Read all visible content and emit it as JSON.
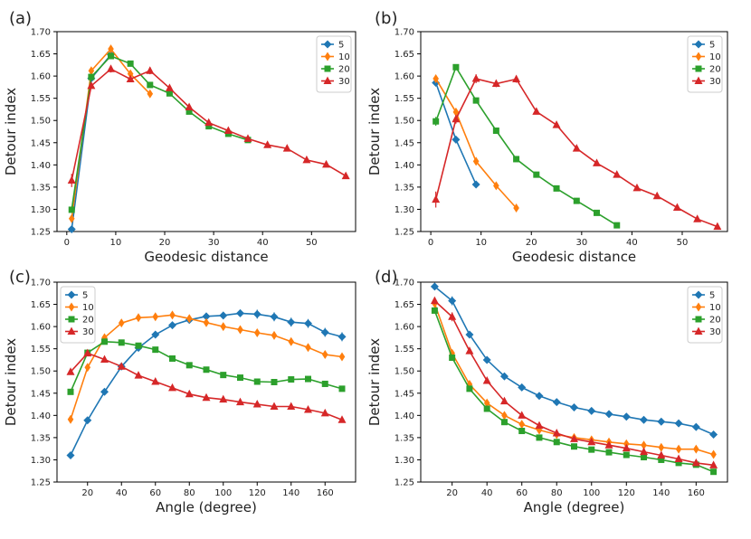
{
  "figure": {
    "panel_count": 4
  },
  "chart_data": [
    {
      "panel": "(a)",
      "type": "line",
      "xlabel": "Geodesic distance",
      "ylabel": "Detour index",
      "xlim": [
        -2,
        59
      ],
      "ylim": [
        1.25,
        1.7
      ],
      "xticks": [
        0,
        10,
        20,
        30,
        40,
        50
      ],
      "yticks": [
        1.25,
        1.3,
        1.35,
        1.4,
        1.45,
        1.5,
        1.55,
        1.6,
        1.65,
        1.7
      ],
      "legend_position": "top-right",
      "series": [
        {
          "name": "5",
          "color": "#1f77b4",
          "marker": "diamond",
          "x": [
            1,
            5,
            9
          ],
          "y": [
            1.255,
            1.595,
            1.648
          ],
          "err": [
            0.004,
            0.004,
            0.004
          ]
        },
        {
          "name": "10",
          "color": "#ff7f0e",
          "marker": "thin-diamond",
          "x": [
            1,
            5,
            9,
            13,
            17
          ],
          "y": [
            1.279,
            1.612,
            1.661,
            1.605,
            1.56
          ],
          "err": [
            0.005,
            0.004,
            0.004,
            0.004,
            0.003
          ]
        },
        {
          "name": "20",
          "color": "#2ca02c",
          "marker": "square",
          "x": [
            1,
            5,
            9,
            13,
            17,
            21,
            25,
            29,
            33,
            37
          ],
          "y": [
            1.299,
            1.598,
            1.645,
            1.628,
            1.58,
            1.561,
            1.52,
            1.487,
            1.47,
            1.456
          ],
          "err": [
            0.005,
            0.004,
            0.004,
            0.004,
            0.003,
            0.003,
            0.003,
            0.003,
            0.003,
            0.003
          ]
        },
        {
          "name": "30",
          "color": "#d62728",
          "marker": "triangle",
          "x": [
            1,
            5,
            9,
            13,
            17,
            21,
            25,
            29,
            33,
            37,
            41,
            45,
            49,
            53,
            57
          ],
          "y": [
            1.365,
            1.578,
            1.616,
            1.593,
            1.612,
            1.573,
            1.53,
            1.495,
            1.477,
            1.459,
            1.445,
            1.437,
            1.411,
            1.401,
            1.375
          ],
          "err": [
            0.015,
            0.004,
            0.008,
            0.006,
            0.008,
            0.004,
            0.003,
            0.003,
            0.003,
            0.003,
            0.003,
            0.003,
            0.003,
            0.003,
            0.003
          ]
        }
      ]
    },
    {
      "panel": "(b)",
      "type": "line",
      "xlabel": "Geodesic distance",
      "ylabel": "Detour index",
      "xlim": [
        -2,
        59
      ],
      "ylim": [
        1.25,
        1.7
      ],
      "xticks": [
        0,
        10,
        20,
        30,
        40,
        50
      ],
      "yticks": [
        1.25,
        1.3,
        1.35,
        1.4,
        1.45,
        1.5,
        1.55,
        1.6,
        1.65,
        1.7
      ],
      "legend_position": "top-right",
      "series": [
        {
          "name": "5",
          "color": "#1f77b4",
          "marker": "diamond",
          "x": [
            1,
            5,
            9
          ],
          "y": [
            1.585,
            1.457,
            1.356
          ],
          "err": [
            0.004,
            0.004,
            0.003
          ]
        },
        {
          "name": "10",
          "color": "#ff7f0e",
          "marker": "thin-diamond",
          "x": [
            1,
            5,
            9,
            13,
            17
          ],
          "y": [
            1.594,
            1.519,
            1.408,
            1.353,
            1.303
          ],
          "err": [
            0.004,
            0.004,
            0.003,
            0.003,
            0.003
          ]
        },
        {
          "name": "20",
          "color": "#2ca02c",
          "marker": "square",
          "x": [
            1,
            5,
            9,
            13,
            17,
            21,
            25,
            29,
            33,
            37
          ],
          "y": [
            1.498,
            1.62,
            1.545,
            1.477,
            1.413,
            1.378,
            1.347,
            1.319,
            1.292,
            1.264
          ],
          "err": [
            0.01,
            0.006,
            0.004,
            0.003,
            0.003,
            0.003,
            0.003,
            0.003,
            0.003,
            0.003
          ]
        },
        {
          "name": "30",
          "color": "#d62728",
          "marker": "triangle",
          "x": [
            1,
            5,
            9,
            13,
            17,
            21,
            25,
            29,
            33,
            37,
            41,
            45,
            49,
            53,
            57
          ],
          "y": [
            1.322,
            1.503,
            1.594,
            1.583,
            1.593,
            1.52,
            1.49,
            1.437,
            1.404,
            1.378,
            1.348,
            1.33,
            1.304,
            1.278,
            1.261
          ],
          "err": [
            0.018,
            0.01,
            0.01,
            0.008,
            0.008,
            0.005,
            0.004,
            0.003,
            0.003,
            0.003,
            0.003,
            0.003,
            0.003,
            0.003,
            0.003
          ]
        }
      ]
    },
    {
      "panel": "(c)",
      "type": "line",
      "xlabel": "Angle (degree)",
      "ylabel": "Detour index",
      "xlim": [
        2,
        178
      ],
      "ylim": [
        1.25,
        1.7
      ],
      "xticks": [
        20,
        40,
        60,
        80,
        100,
        120,
        140,
        160
      ],
      "yticks": [
        1.25,
        1.3,
        1.35,
        1.4,
        1.45,
        1.5,
        1.55,
        1.6,
        1.65,
        1.7
      ],
      "legend_position": "top-left",
      "series": [
        {
          "name": "5",
          "color": "#1f77b4",
          "marker": "diamond",
          "x": [
            10,
            20,
            30,
            40,
            50,
            60,
            70,
            80,
            90,
            100,
            110,
            120,
            130,
            140,
            150,
            160,
            170
          ],
          "y": [
            1.31,
            1.389,
            1.453,
            1.51,
            1.552,
            1.582,
            1.603,
            1.615,
            1.623,
            1.625,
            1.63,
            1.628,
            1.622,
            1.61,
            1.607,
            1.587,
            1.577
          ],
          "err": [
            0.006,
            0.006,
            0.006,
            0.006,
            0.006,
            0.006,
            0.006,
            0.006,
            0.008,
            0.008,
            0.008,
            0.01,
            0.01,
            0.01,
            0.01,
            0.01,
            0.01
          ]
        },
        {
          "name": "10",
          "color": "#ff7f0e",
          "marker": "thin-diamond",
          "x": [
            10,
            20,
            30,
            40,
            50,
            60,
            70,
            80,
            90,
            100,
            110,
            120,
            130,
            140,
            150,
            160,
            170
          ],
          "y": [
            1.391,
            1.508,
            1.575,
            1.608,
            1.62,
            1.622,
            1.626,
            1.618,
            1.609,
            1.6,
            1.593,
            1.586,
            1.58,
            1.566,
            1.553,
            1.537,
            1.532
          ],
          "err": [
            0.004,
            0.004,
            0.004,
            0.004,
            0.004,
            0.004,
            0.004,
            0.004,
            0.004,
            0.004,
            0.004,
            0.004,
            0.004,
            0.004,
            0.004,
            0.004,
            0.004
          ]
        },
        {
          "name": "20",
          "color": "#2ca02c",
          "marker": "square",
          "x": [
            10,
            20,
            30,
            40,
            50,
            60,
            70,
            80,
            90,
            100,
            110,
            120,
            130,
            140,
            150,
            160,
            170
          ],
          "y": [
            1.453,
            1.541,
            1.566,
            1.564,
            1.557,
            1.548,
            1.528,
            1.513,
            1.503,
            1.491,
            1.485,
            1.476,
            1.475,
            1.481,
            1.482,
            1.471,
            1.46
          ],
          "err": [
            0.004,
            0.004,
            0.004,
            0.004,
            0.004,
            0.004,
            0.004,
            0.004,
            0.004,
            0.004,
            0.004,
            0.004,
            0.004,
            0.006,
            0.006,
            0.006,
            0.006
          ]
        },
        {
          "name": "30",
          "color": "#d62728",
          "marker": "triangle",
          "x": [
            10,
            20,
            30,
            40,
            50,
            60,
            70,
            80,
            90,
            100,
            110,
            120,
            130,
            140,
            150,
            160,
            170
          ],
          "y": [
            1.498,
            1.54,
            1.526,
            1.51,
            1.49,
            1.476,
            1.462,
            1.448,
            1.44,
            1.436,
            1.43,
            1.425,
            1.42,
            1.42,
            1.413,
            1.405,
            1.39
          ],
          "err": [
            0.004,
            0.004,
            0.004,
            0.004,
            0.004,
            0.004,
            0.004,
            0.004,
            0.004,
            0.004,
            0.004,
            0.004,
            0.004,
            0.004,
            0.004,
            0.004,
            0.004
          ]
        }
      ]
    },
    {
      "panel": "(d)",
      "type": "line",
      "xlabel": "Angle (degree)",
      "ylabel": "Detour index",
      "xlim": [
        2,
        178
      ],
      "ylim": [
        1.25,
        1.7
      ],
      "xticks": [
        20,
        40,
        60,
        80,
        100,
        120,
        140,
        160
      ],
      "yticks": [
        1.25,
        1.3,
        1.35,
        1.4,
        1.45,
        1.5,
        1.55,
        1.6,
        1.65,
        1.7
      ],
      "legend_position": "top-right",
      "series": [
        {
          "name": "5",
          "color": "#1f77b4",
          "marker": "diamond",
          "x": [
            10,
            20,
            30,
            40,
            50,
            60,
            70,
            80,
            90,
            100,
            110,
            120,
            130,
            140,
            150,
            160,
            170
          ],
          "y": [
            1.69,
            1.658,
            1.582,
            1.525,
            1.488,
            1.463,
            1.444,
            1.43,
            1.418,
            1.41,
            1.403,
            1.397,
            1.39,
            1.386,
            1.382,
            1.374,
            1.357
          ],
          "err": [
            0.005,
            0.01,
            0.006,
            0.004,
            0.004,
            0.004,
            0.004,
            0.004,
            0.004,
            0.004,
            0.004,
            0.004,
            0.004,
            0.004,
            0.004,
            0.004,
            0.004
          ]
        },
        {
          "name": "10",
          "color": "#ff7f0e",
          "marker": "thin-diamond",
          "x": [
            10,
            20,
            30,
            40,
            50,
            60,
            70,
            80,
            90,
            100,
            110,
            120,
            130,
            140,
            150,
            160,
            170
          ],
          "y": [
            1.652,
            1.54,
            1.47,
            1.428,
            1.4,
            1.38,
            1.367,
            1.357,
            1.35,
            1.345,
            1.34,
            1.336,
            1.333,
            1.328,
            1.324,
            1.324,
            1.312
          ],
          "err": [
            0.006,
            0.005,
            0.004,
            0.004,
            0.004,
            0.004,
            0.004,
            0.004,
            0.004,
            0.004,
            0.004,
            0.004,
            0.004,
            0.004,
            0.004,
            0.004,
            0.004
          ]
        },
        {
          "name": "20",
          "color": "#2ca02c",
          "marker": "square",
          "x": [
            10,
            20,
            30,
            40,
            50,
            60,
            70,
            80,
            90,
            100,
            110,
            120,
            130,
            140,
            150,
            160,
            170
          ],
          "y": [
            1.636,
            1.53,
            1.46,
            1.415,
            1.385,
            1.365,
            1.35,
            1.34,
            1.33,
            1.323,
            1.317,
            1.311,
            1.306,
            1.3,
            1.293,
            1.289,
            1.273
          ],
          "err": [
            0.006,
            0.005,
            0.004,
            0.004,
            0.004,
            0.004,
            0.004,
            0.004,
            0.004,
            0.004,
            0.004,
            0.004,
            0.004,
            0.004,
            0.004,
            0.004,
            0.004
          ]
        },
        {
          "name": "30",
          "color": "#d62728",
          "marker": "triangle",
          "x": [
            10,
            20,
            30,
            40,
            50,
            60,
            70,
            80,
            90,
            100,
            110,
            120,
            130,
            140,
            150,
            160,
            170
          ],
          "y": [
            1.658,
            1.622,
            1.545,
            1.478,
            1.432,
            1.4,
            1.377,
            1.36,
            1.347,
            1.34,
            1.333,
            1.326,
            1.318,
            1.31,
            1.302,
            1.293,
            1.288
          ],
          "err": [
            0.008,
            0.01,
            0.006,
            0.004,
            0.004,
            0.004,
            0.004,
            0.004,
            0.004,
            0.004,
            0.004,
            0.004,
            0.004,
            0.004,
            0.004,
            0.004,
            0.004
          ]
        }
      ]
    }
  ]
}
